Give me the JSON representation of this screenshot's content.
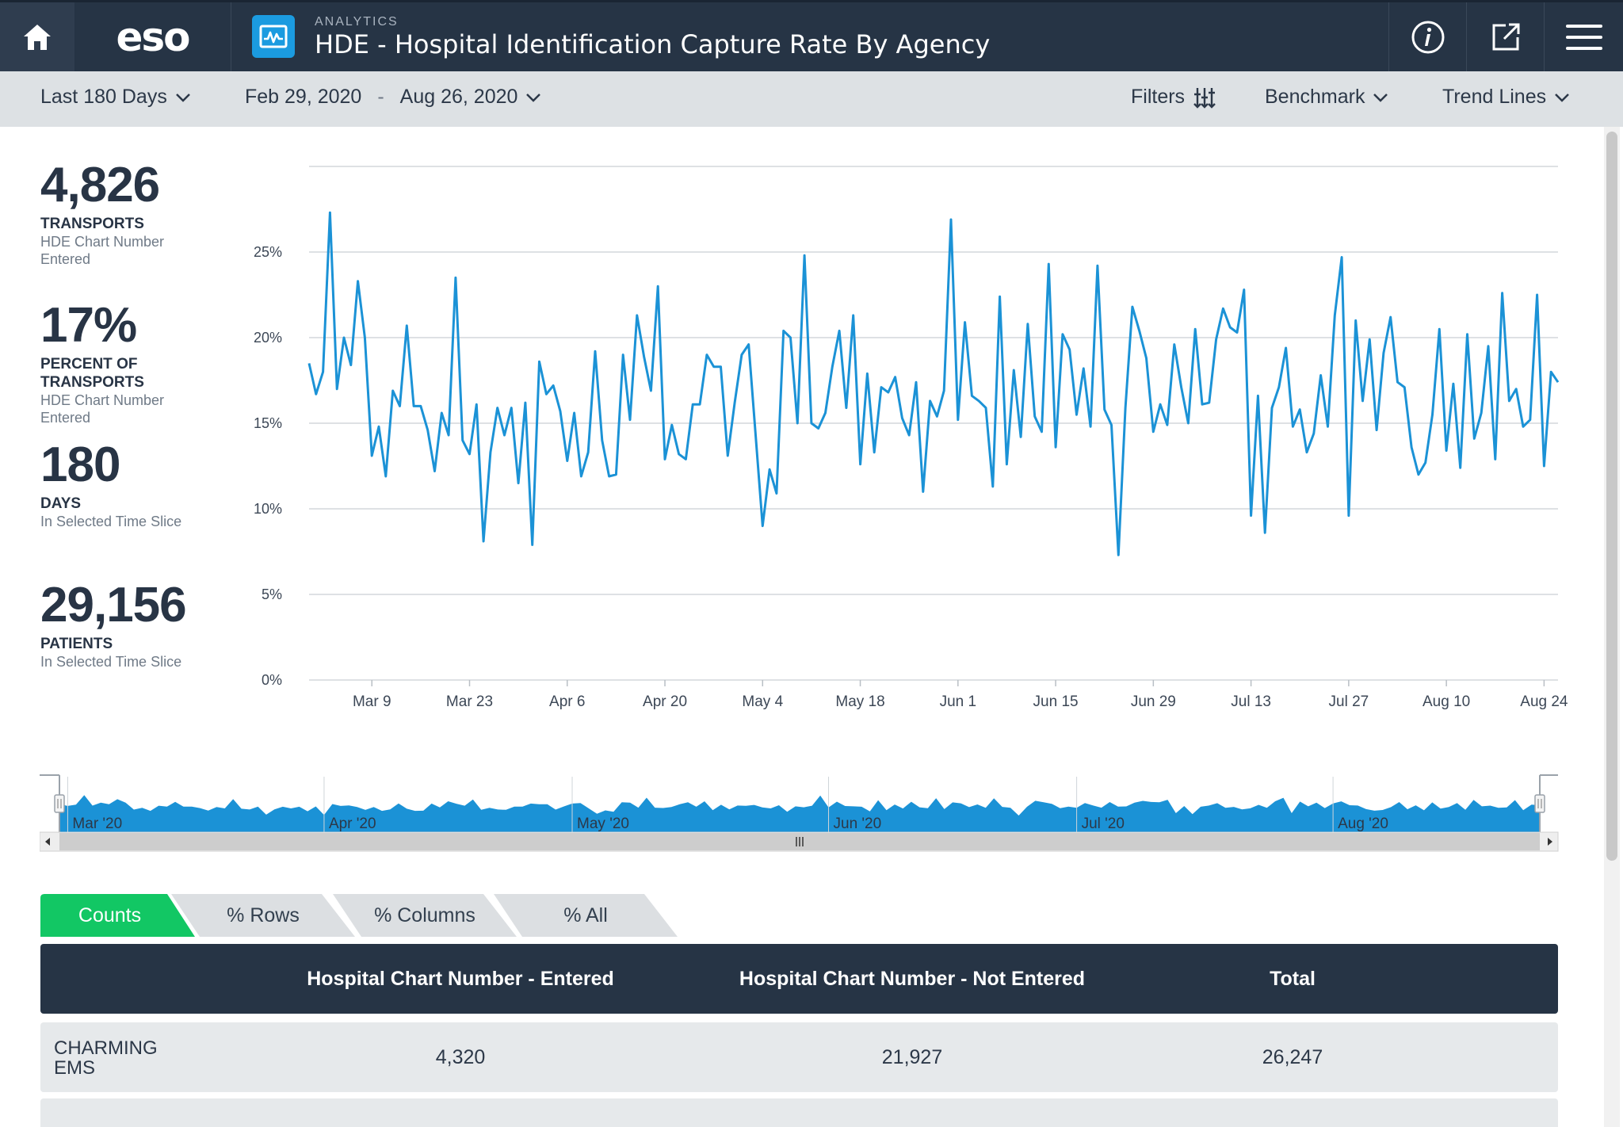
{
  "header": {
    "home_icon": "home-icon",
    "logo": "eso",
    "app_icon": "analytics-chart-icon",
    "kicker": "ANALYTICS",
    "title": "HDE - Hospital Identification Capture Rate By Agency",
    "info_icon": "info-icon",
    "external_icon": "open-external-icon",
    "menu_icon": "hamburger-menu-icon"
  },
  "filters": {
    "range": "Last 180 Days",
    "date_start": "Feb 29, 2020",
    "date_sep": "-",
    "date_end": "Aug 26, 2020",
    "filters_label": "Filters",
    "benchmark_label": "Benchmark",
    "trend_label": "Trend Lines"
  },
  "stats": [
    {
      "value": "4,826",
      "label": "TRANSPORTS",
      "sub": "HDE Chart Number Entered"
    },
    {
      "value": "17%",
      "label": "PERCENT OF TRANSPORTS",
      "sub": "HDE Chart Number Entered"
    },
    {
      "value": "180",
      "label": "DAYS",
      "sub": "In Selected Time Slice"
    },
    {
      "value": "29,156",
      "label": "PATIENTS",
      "sub": "In Selected Time Slice"
    }
  ],
  "chart_data": {
    "type": "line",
    "title": "",
    "xlabel": "",
    "ylabel": "",
    "ylim": [
      0,
      30
    ],
    "y_ticks": [
      "0%",
      "5%",
      "10%",
      "15%",
      "20%",
      "25%"
    ],
    "y_tick_values": [
      0,
      5,
      10,
      15,
      20,
      25
    ],
    "x_start": "2020-02-29",
    "x_end": "2020-08-26",
    "x_ticks": [
      {
        "date": "2020-03-09",
        "label": "Mar 9"
      },
      {
        "date": "2020-03-23",
        "label": "Mar 23"
      },
      {
        "date": "2020-04-06",
        "label": "Apr 6"
      },
      {
        "date": "2020-04-20",
        "label": "Apr 20"
      },
      {
        "date": "2020-05-04",
        "label": "May 4"
      },
      {
        "date": "2020-05-18",
        "label": "May 18"
      },
      {
        "date": "2020-06-01",
        "label": "Jun 1"
      },
      {
        "date": "2020-06-15",
        "label": "Jun 15"
      },
      {
        "date": "2020-06-29",
        "label": "Jun 29"
      },
      {
        "date": "2020-07-13",
        "label": "Jul 13"
      },
      {
        "date": "2020-07-27",
        "label": "Jul 27"
      },
      {
        "date": "2020-08-10",
        "label": "Aug 10"
      },
      {
        "date": "2020-08-24",
        "label": "Aug 24"
      }
    ],
    "grid": true,
    "line_color": "#1b92d6",
    "series": [
      {
        "values": [
          18.5,
          16.7,
          18.0,
          27.3,
          17.0,
          20.0,
          18.4,
          23.3,
          20.0,
          13.1,
          14.8,
          11.9,
          16.9,
          16.0,
          20.7,
          16.0,
          16.0,
          14.6,
          12.2,
          15.6,
          14.3,
          23.5,
          14.0,
          13.2,
          16.1,
          8.1,
          13.3,
          15.9,
          14.3,
          15.9,
          11.5,
          16.2,
          7.9,
          18.6,
          16.7,
          17.2,
          15.7,
          12.8,
          15.6,
          11.9,
          13.3,
          19.2,
          14.0,
          11.9,
          12.0,
          19.0,
          15.2,
          21.3,
          18.9,
          16.9,
          23.0,
          12.9,
          14.9,
          13.2,
          12.9,
          16.1,
          16.1,
          19.0,
          18.3,
          18.3,
          13.1,
          16.2,
          19.0,
          19.6,
          14.3,
          9.0,
          12.3,
          10.9,
          20.4,
          20.0,
          15.0,
          24.8,
          15.0,
          14.7,
          15.6,
          18.3,
          20.4,
          15.9,
          21.3,
          12.6,
          17.9,
          13.3,
          17.1,
          16.8,
          17.7,
          15.3,
          14.3,
          17.4,
          11.0,
          16.3,
          15.4,
          16.9,
          26.9,
          15.2,
          20.9,
          16.6,
          16.3,
          15.9,
          11.3,
          22.4,
          12.6,
          18.1,
          14.2,
          20.8,
          15.4,
          14.5,
          24.3,
          13.6,
          20.2,
          19.3,
          15.5,
          18.2,
          14.8,
          24.2,
          15.8,
          14.9,
          7.3,
          15.9,
          21.8,
          20.4,
          18.8,
          14.5,
          16.1,
          14.9,
          19.6,
          17.1,
          15.0,
          20.5,
          16.1,
          16.2,
          19.9,
          21.7,
          20.6,
          20.3,
          22.8,
          9.6,
          16.6,
          8.6,
          15.9,
          17.1,
          19.4,
          14.8,
          15.8,
          13.3,
          14.4,
          17.8,
          14.8,
          21.3,
          24.7,
          9.6,
          21.0,
          16.3,
          19.9,
          14.6,
          19.1,
          21.2,
          17.4,
          17.1,
          13.6,
          12.0,
          12.7,
          15.5,
          20.5,
          13.4,
          17.3,
          12.4,
          20.2,
          14.1,
          15.6,
          19.5,
          12.9,
          22.6,
          16.3,
          17.0,
          14.8,
          15.2,
          22.5,
          12.5,
          18.0,
          17.4
        ]
      }
    ]
  },
  "navigator": {
    "labels": [
      "Mar '20",
      "Apr '20",
      "May '20",
      "Jun '20",
      "Jul '20",
      "Aug '20"
    ],
    "area_color": "#1b92d6"
  },
  "tabs": [
    {
      "label": "Counts",
      "active": true
    },
    {
      "label": "% Rows",
      "active": false
    },
    {
      "label": "% Columns",
      "active": false
    },
    {
      "label": "% All",
      "active": false
    }
  ],
  "table": {
    "columns": [
      "",
      "Hospital Chart Number - Entered",
      "Hospital Chart Number - Not Entered",
      "Total"
    ],
    "rows": [
      {
        "agency": "CHARMING EMS",
        "entered": "4,320",
        "not_entered": "21,927",
        "total": "26,247"
      }
    ]
  },
  "colors": {
    "header_bg": "#263445",
    "filter_bg": "#dde1e4",
    "accent_blue": "#1b92d6",
    "tab_active": "#12c764",
    "tab_inactive": "#dcdfe2",
    "row_bg": "#e6e9eb"
  }
}
